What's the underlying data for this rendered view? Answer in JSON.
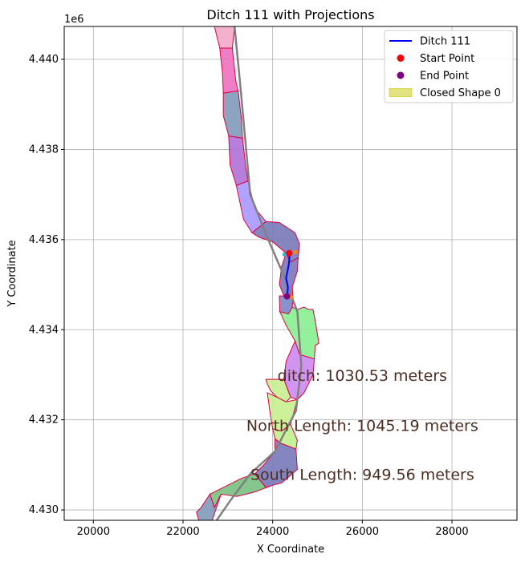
{
  "chart_data": {
    "type": "line",
    "title": "Ditch 111 with Projections",
    "xlabel": "X Coordinate",
    "ylabel": "Y Coordinate",
    "y_offset_label": "1e6",
    "xlim": [
      19350,
      29450
    ],
    "ylim": [
      4429770,
      4440730
    ],
    "xticks": [
      20000,
      22000,
      24000,
      26000,
      28000
    ],
    "xtick_labels": [
      "20000",
      "22000",
      "24000",
      "26000",
      "28000"
    ],
    "yticks": [
      4430000,
      4432000,
      4434000,
      4436000,
      4438000,
      4440000
    ],
    "ytick_labels": [
      "4.430",
      "4.432",
      "4.434",
      "4.436",
      "4.438",
      "4.440"
    ],
    "grid": true,
    "legend_position": "top-right",
    "colors": {
      "ditch": "#0000ff",
      "start": "#ff0000",
      "end": "#800080",
      "closed_shape": "#d6d64a",
      "shape_edge": "#e00040",
      "centerline": "#808080",
      "annotation_text": "#4b2e22",
      "projection_points": "#ff8c00",
      "projection_points_alt": "#20c0d0"
    },
    "legend": [
      {
        "label": "Ditch 111",
        "kind": "line",
        "color": "#0000ff"
      },
      {
        "label": "Start Point",
        "kind": "dot",
        "color": "#ff0000"
      },
      {
        "label": "End Point",
        "kind": "dot",
        "color": "#800080"
      },
      {
        "label": "Closed Shape 0",
        "kind": "patch",
        "color": "#d6d64a"
      }
    ],
    "annotations": [
      {
        "text": "ditch: 1030.53 meters",
        "x": 26000,
        "y": 4432990
      },
      {
        "text": "North Length: 1045.19 meters",
        "x": 26000,
        "y": 4431880
      },
      {
        "text": "South Length: 949.56 meters",
        "x": 26000,
        "y": 4430790
      }
    ],
    "ditch_line": {
      "name": "Ditch 111",
      "x": [
        24380,
        24360,
        24300,
        24340,
        24330,
        24350
      ],
      "y": [
        4435690,
        4435450,
        4435150,
        4434950,
        4434800,
        4434720
      ]
    },
    "start_point": {
      "x": 24370,
      "y": 4435700
    },
    "end_point": {
      "x": 24320,
      "y": 4434740
    },
    "projection_points": [
      {
        "x": 24510,
        "y": 4435720,
        "color": "#ff8c00"
      },
      {
        "x": 24420,
        "y": 4434720,
        "color": "#ff8c00"
      },
      {
        "x": 24260,
        "y": 4435670,
        "color": "#20c0d0"
      }
    ],
    "centerline": {
      "x": [
        23150,
        23290,
        23500,
        23900,
        24250,
        24550,
        24640,
        24520,
        24050,
        23500,
        23050,
        22750
      ],
      "y": [
        4440730,
        4439300,
        4437000,
        4436000,
        4435200,
        4434400,
        4433200,
        4432200,
        4431300,
        4430800,
        4430200,
        4429770
      ]
    },
    "polygons": [
      {
        "fill": "#f3a8c8",
        "x": [
          22700,
          23150,
          23100,
          22820
        ],
        "y": [
          4440730,
          4440730,
          4440250,
          4440250
        ]
      },
      {
        "fill": "#ee70c0",
        "x": [
          22820,
          23100,
          23180,
          23230,
          22900,
          22880
        ],
        "y": [
          4440250,
          4440250,
          4439500,
          4439300,
          4439250,
          4439700
        ]
      },
      {
        "fill": "#7f9ab8",
        "x": [
          22900,
          23230,
          23300,
          23330,
          23020,
          22900
        ],
        "y": [
          4439250,
          4439300,
          4438700,
          4438250,
          4438300,
          4438750
        ]
      },
      {
        "fill": "#b070d8",
        "x": [
          23020,
          23330,
          23400,
          23450,
          23190,
          23050
        ],
        "y": [
          4438300,
          4438250,
          4437600,
          4437300,
          4437200,
          4437650
        ]
      },
      {
        "fill": "#a898ff",
        "x": [
          23190,
          23450,
          23600,
          23850,
          23540,
          23350
        ],
        "y": [
          4437200,
          4437300,
          4436700,
          4436400,
          4436150,
          4436450
        ]
      },
      {
        "fill": "#7878b8",
        "x": [
          23540,
          23850,
          24150,
          24500,
          24600,
          24570,
          24400,
          24300,
          24000,
          23700
        ],
        "y": [
          4436150,
          4436400,
          4436380,
          4436150,
          4435900,
          4435600,
          4435500,
          4435700,
          4435950,
          4436050
        ]
      },
      {
        "fill": "#7878b8",
        "x": [
          24300,
          24400,
          24570,
          24550,
          24440,
          24450,
          24250,
          24150,
          24200
        ],
        "y": [
          4435700,
          4435500,
          4435600,
          4435300,
          4434950,
          4434700,
          4434750,
          4435000,
          4435400
        ]
      },
      {
        "fill": "#7b86c8",
        "x": [
          24150,
          24250,
          24450,
          24440,
          24350,
          24160
        ],
        "y": [
          4434750,
          4434750,
          4434700,
          4434500,
          4434350,
          4434400
        ]
      },
      {
        "fill": "#88f090",
        "x": [
          24160,
          24350,
          24440,
          24550,
          24700,
          24800,
          24900,
          24950,
          25030,
          24950,
          24930,
          24600,
          24500,
          24300
        ],
        "y": [
          4434400,
          4434350,
          4434500,
          4434450,
          4434500,
          4434450,
          4434450,
          4434200,
          4433700,
          4433650,
          4433350,
          4433450,
          4433750,
          4434100
        ]
      },
      {
        "fill": "#cc88ee",
        "x": [
          24500,
          24600,
          24930,
          24900,
          24700,
          24550,
          24400,
          24250,
          24300
        ],
        "y": [
          4433750,
          4433450,
          4433350,
          4433000,
          4432600,
          4432450,
          4432500,
          4432900,
          4433300
        ]
      },
      {
        "fill": "#c8f090",
        "x": [
          23850,
          24250,
          24400,
          24300,
          24100,
          23950,
          23880
        ],
        "y": [
          4432900,
          4432900,
          4432500,
          4432400,
          4432500,
          4432650,
          4432800
        ]
      },
      {
        "fill": "#c8f090",
        "x": [
          23880,
          24100,
          24300,
          24550,
          24400,
          24200,
          24000,
          23950
        ],
        "y": [
          4432600,
          4432500,
          4432400,
          4432450,
          4431900,
          4431750,
          4431800,
          4432100
        ]
      },
      {
        "fill": "#c0f090",
        "x": [
          24000,
          24200,
          24400,
          24550,
          24520,
          24180,
          24050
        ],
        "y": [
          4431800,
          4431750,
          4431900,
          4431550,
          4431350,
          4431480,
          4431580
        ]
      },
      {
        "fill": "#7878b8",
        "x": [
          24050,
          24180,
          24520,
          24550,
          24200,
          24000,
          23850,
          23600,
          23800,
          24050
        ],
        "y": [
          4431580,
          4431480,
          4431350,
          4430900,
          4430600,
          4430550,
          4430500,
          4430800,
          4431000,
          4431300
        ]
      },
      {
        "fill": "#78c080",
        "x": [
          23850,
          24000,
          23600,
          23200,
          22850,
          22700,
          22600,
          23000,
          23300,
          23600
        ],
        "y": [
          4430500,
          4430550,
          4430400,
          4430300,
          4430350,
          4430050,
          4430350,
          4430550,
          4430700,
          4430800
        ]
      },
      {
        "fill": "#7f9ab8",
        "x": [
          22400,
          22600,
          22700,
          22850,
          22650,
          22350,
          22300
        ],
        "y": [
          4430050,
          4430350,
          4430050,
          4430350,
          4429770,
          4429770,
          4429950
        ]
      }
    ]
  }
}
